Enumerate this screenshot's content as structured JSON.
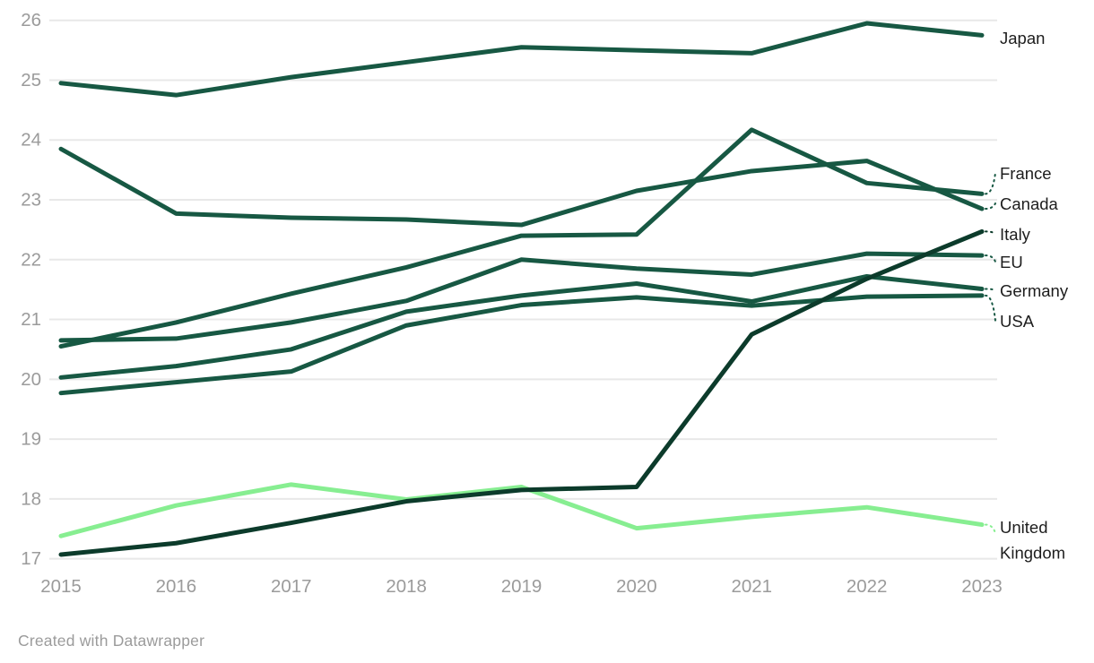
{
  "chart_data": {
    "type": "line",
    "title": "",
    "xlabel": "",
    "ylabel": "",
    "x": [
      "2015",
      "2016",
      "2017",
      "2018",
      "2019",
      "2020",
      "2021",
      "2022",
      "2023"
    ],
    "ylim": [
      17,
      26
    ],
    "yticks": [
      17,
      18,
      19,
      20,
      21,
      22,
      23,
      24,
      25,
      26
    ],
    "grid": "horizontal-only",
    "legend_position": "labels-at-line-ends-right",
    "series": [
      {
        "name": "Japan",
        "color": "#175843",
        "values": [
          24.95,
          24.75,
          25.05,
          25.3,
          25.55,
          25.5,
          25.45,
          25.95,
          25.75
        ]
      },
      {
        "name": "France",
        "color": "#175843",
        "values": [
          20.55,
          20.95,
          21.43,
          21.87,
          22.4,
          22.42,
          24.17,
          23.28,
          23.1
        ]
      },
      {
        "name": "Canada",
        "color": "#175843",
        "values": [
          23.85,
          22.77,
          22.7,
          22.67,
          22.58,
          23.15,
          23.48,
          23.65,
          22.85
        ]
      },
      {
        "name": "EU",
        "color": "#175843",
        "values": [
          20.65,
          20.68,
          20.95,
          21.31,
          22.0,
          21.85,
          21.75,
          22.1,
          22.07
        ]
      },
      {
        "name": "Germany",
        "color": "#175843",
        "values": [
          20.03,
          20.22,
          20.5,
          21.13,
          21.4,
          21.6,
          21.3,
          21.72,
          21.51
        ]
      },
      {
        "name": "USA",
        "color": "#175843",
        "values": [
          19.77,
          19.95,
          20.13,
          20.9,
          21.24,
          21.37,
          21.23,
          21.38,
          21.4
        ]
      },
      {
        "name": "United Kingdom",
        "color": "#87ee91",
        "values": [
          17.38,
          17.89,
          18.24,
          17.99,
          18.2,
          17.51,
          17.7,
          17.86,
          17.57
        ]
      },
      {
        "name": "Italy",
        "color": "#0c3b2b",
        "values": [
          17.07,
          17.26,
          17.6,
          17.96,
          18.15,
          18.2,
          20.75,
          21.68,
          22.47
        ]
      }
    ]
  },
  "colors": {
    "background": "#ffffff",
    "gridline": "#e8e8e8",
    "axis_text": "#9b9b9b",
    "series_label_text": "#1d1d1d"
  },
  "footer": {
    "text": "Created with Datawrapper"
  }
}
